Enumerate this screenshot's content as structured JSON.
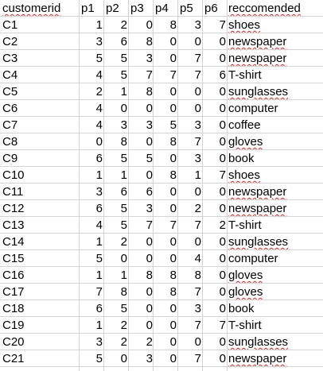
{
  "spreadsheet": {
    "headers": {
      "customerid": "customerid",
      "p1": "p1",
      "p2": "p2",
      "p3": "p3",
      "p4": "p4",
      "p5": "p5",
      "p6": "p6",
      "recommended": "reccomended"
    },
    "rows": [
      {
        "id": "C1",
        "p1": "1",
        "p2": "2",
        "p3": "0",
        "p4": "8",
        "p5": "3",
        "p6": "7",
        "rec": "shoes"
      },
      {
        "id": "C2",
        "p1": "3",
        "p2": "6",
        "p3": "8",
        "p4": "0",
        "p5": "0",
        "p6": "0",
        "rec": "newspaper"
      },
      {
        "id": "C3",
        "p1": "5",
        "p2": "5",
        "p3": "3",
        "p4": "0",
        "p5": "7",
        "p6": "0",
        "rec": "newspaper"
      },
      {
        "id": "C4",
        "p1": "4",
        "p2": "5",
        "p3": "7",
        "p4": "7",
        "p5": "7",
        "p6": "6",
        "rec": "T-shirt"
      },
      {
        "id": "C5",
        "p1": "2",
        "p2": "1",
        "p3": "8",
        "p4": "0",
        "p5": "0",
        "p6": "0",
        "rec": "sunglasses"
      },
      {
        "id": "C6",
        "p1": "4",
        "p2": "0",
        "p3": "0",
        "p4": "0",
        "p5": "0",
        "p6": "0",
        "rec": "computer"
      },
      {
        "id": "C7",
        "p1": "4",
        "p2": "3",
        "p3": "3",
        "p4": "5",
        "p5": "3",
        "p6": "0",
        "rec": "coffee"
      },
      {
        "id": "C8",
        "p1": "0",
        "p2": "8",
        "p3": "0",
        "p4": "8",
        "p5": "7",
        "p6": "0",
        "rec": "gloves"
      },
      {
        "id": "C9",
        "p1": "6",
        "p2": "5",
        "p3": "5",
        "p4": "0",
        "p5": "3",
        "p6": "0",
        "rec": "book"
      },
      {
        "id": "C10",
        "p1": "1",
        "p2": "1",
        "p3": "0",
        "p4": "8",
        "p5": "1",
        "p6": "7",
        "rec": "shoes"
      },
      {
        "id": "C11",
        "p1": "3",
        "p2": "6",
        "p3": "6",
        "p4": "0",
        "p5": "0",
        "p6": "0",
        "rec": "newspaper"
      },
      {
        "id": "C12",
        "p1": "6",
        "p2": "5",
        "p3": "3",
        "p4": "0",
        "p5": "2",
        "p6": "0",
        "rec": "newspaper"
      },
      {
        "id": "C13",
        "p1": "4",
        "p2": "5",
        "p3": "7",
        "p4": "7",
        "p5": "7",
        "p6": "2",
        "rec": "T-shirt"
      },
      {
        "id": "C14",
        "p1": "1",
        "p2": "2",
        "p3": "0",
        "p4": "0",
        "p5": "0",
        "p6": "0",
        "rec": "sunglasses"
      },
      {
        "id": "C15",
        "p1": "5",
        "p2": "0",
        "p3": "0",
        "p4": "0",
        "p5": "4",
        "p6": "0",
        "rec": "computer"
      },
      {
        "id": "C16",
        "p1": "1",
        "p2": "1",
        "p3": "8",
        "p4": "8",
        "p5": "8",
        "p6": "0",
        "rec": "gloves"
      },
      {
        "id": "C17",
        "p1": "7",
        "p2": "8",
        "p3": "0",
        "p4": "8",
        "p5": "7",
        "p6": "0",
        "rec": "gloves"
      },
      {
        "id": "C18",
        "p1": "6",
        "p2": "5",
        "p3": "0",
        "p4": "0",
        "p5": "3",
        "p6": "0",
        "rec": "book"
      },
      {
        "id": "C19",
        "p1": "1",
        "p2": "2",
        "p3": "0",
        "p4": "0",
        "p5": "7",
        "p6": "7",
        "rec": "T-shirt"
      },
      {
        "id": "C20",
        "p1": "3",
        "p2": "2",
        "p3": "2",
        "p4": "0",
        "p5": "0",
        "p6": "0",
        "rec": "sunglasses"
      },
      {
        "id": "C21",
        "p1": "5",
        "p2": "0",
        "p3": "3",
        "p4": "0",
        "p5": "7",
        "p6": "0",
        "rec": "newspaper"
      }
    ],
    "colors": {
      "gridline": "#d4d4d4",
      "spellcheck_underline": "#e0201b",
      "text": "#000000",
      "background": "#ffffff"
    }
  }
}
